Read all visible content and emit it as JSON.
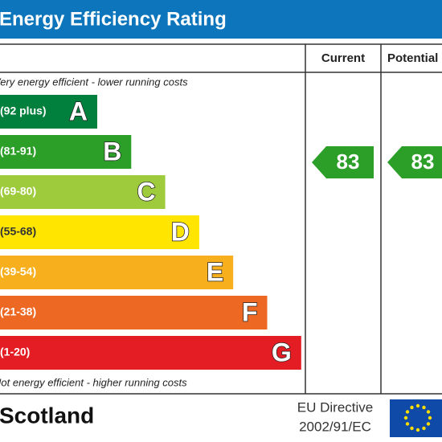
{
  "title": "Energy Efficiency Rating",
  "headers": {
    "current": "Current",
    "potential": "Potential"
  },
  "top_note": "Very energy efficient - lower running costs",
  "bottom_note": "Not energy efficient - higher running costs",
  "bands": [
    {
      "range": "(92 plus)",
      "letter": "A"
    },
    {
      "range": "(81-91)",
      "letter": "B"
    },
    {
      "range": "(69-80)",
      "letter": "C"
    },
    {
      "range": "(55-68)",
      "letter": "D"
    },
    {
      "range": "(39-54)",
      "letter": "E"
    },
    {
      "range": "(21-38)",
      "letter": "F"
    },
    {
      "range": "(1-20)",
      "letter": "G"
    }
  ],
  "current": "83",
  "potential": "83",
  "footer": {
    "region": "Scotland",
    "directive_line1": "EU Directive",
    "directive_line2": "2002/91/EC"
  }
}
